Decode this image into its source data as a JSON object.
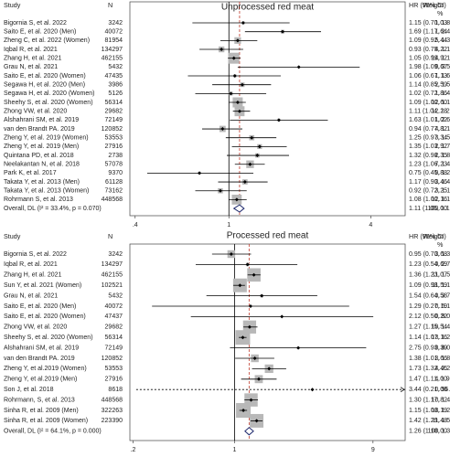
{
  "chart_data": [
    {
      "type": "forest",
      "title": "Unprocessed red meat",
      "log_scale": true,
      "headers": {
        "study": "Study",
        "n": "N",
        "hr": "HR (95% CI)",
        "weight": [
          "Weight",
          "%"
        ]
      },
      "xlim": [
        0.38,
        5.6
      ],
      "xticks": [
        {
          "value": 0.4,
          "label": ".4"
        },
        1,
        4
      ],
      "null_line": 1,
      "box_color": "#b8b8b8",
      "diamond_color": "#1f2a6e",
      "overall_line_color": "#c0392b",
      "rows": [
        {
          "study": "Bigornia S, et al. 2022",
          "n": 3242,
          "hr": 1.15,
          "ci": [
            0.7,
            1.81
          ],
          "hr_label": "1.15 (0.70, 1.81)",
          "weight": 1.03,
          "weight_label": "1.03"
        },
        {
          "study": "Saito E, et al. 2020 (Men)",
          "n": 40072,
          "hr": 1.69,
          "ci": [
            1.17,
            2.46
          ],
          "hr_label": "1.69 (1.17, 2.46)",
          "weight": 1.64,
          "weight_label": "1.64"
        },
        {
          "study": "Zheng C, et al. 2022 (Women)",
          "n": 81954,
          "hr": 1.09,
          "ci": [
            0.92,
            1.32
          ],
          "hr_label": "1.09 (0.92, 1.32)",
          "weight": 5.44,
          "weight_label": "5.44"
        },
        {
          "study": "Iqbal R, et al. 2021",
          "n": 134297,
          "hr": 0.93,
          "ci": [
            0.75,
            1.15
          ],
          "hr_label": "0.93 (0.75, 1.15)",
          "weight": 4.22,
          "weight_label": "4.22"
        },
        {
          "study": "Zhang H, et al. 2021",
          "n": 462155,
          "hr": 1.05,
          "ci": [
            0.99,
            1.12
          ],
          "hr_label": "1.05 (0.99, 1.12)",
          "weight": 14.92,
          "weight_label": "14.92"
        },
        {
          "study": "Grau N, et al. 2021",
          "n": 5432,
          "hr": 1.98,
          "ci": [
            1.09,
            3.59
          ],
          "hr_label": "1.98 (1.09, 3.59)",
          "weight": 0.67,
          "weight_label": "0.67"
        },
        {
          "study": "Saito E, et al. 2020 (Women)",
          "n": 47435,
          "hr": 1.06,
          "ci": [
            0.67,
            1.66
          ],
          "hr_label": "1.06 (0.67, 1.66)",
          "weight": 1.13,
          "weight_label": "1.13"
        },
        {
          "study": "Segawa H, et al. 2020 (Men)",
          "n": 3986,
          "hr": 1.14,
          "ci": [
            0.85,
            1.51
          ],
          "hr_label": "1.14 (0.85, 1.51)",
          "weight": 2.59,
          "weight_label": "2.59"
        },
        {
          "study": "Segawa H, et al. 2020 (Women)",
          "n": 5126,
          "hr": 1.02,
          "ci": [
            0.72,
            1.44
          ],
          "hr_label": "1.02 (0.72, 1.44)",
          "weight": 1.86,
          "weight_label": "1.86"
        },
        {
          "study": "Sheehy S, et al. 2020 (Women)",
          "n": 56314,
          "hr": 1.09,
          "ci": [
            1.0,
            1.18
          ],
          "hr_label": "1.09 (1.00, 1.18)",
          "weight": 12.6,
          "weight_label": "12.60"
        },
        {
          "study": "Zhong VW, et al. 2020",
          "n": 29682,
          "hr": 1.11,
          "ci": [
            1.04,
            1.23
          ],
          "hr_label": "1.11 (1.04, 1.23)",
          "weight": 12.28,
          "weight_label": "12.28"
        },
        {
          "study": "Alshahrani SM, et al. 2019",
          "n": 72149,
          "hr": 1.63,
          "ci": [
            1.01,
            2.63
          ],
          "hr_label": "1.63 (1.01, 2.63)",
          "weight": 1.02,
          "weight_label": "1.02"
        },
        {
          "study": "van den Brandt PA. 2019",
          "n": 120852,
          "hr": 0.94,
          "ci": [
            0.77,
            1.14
          ],
          "hr_label": "0.94 (0.77, 1.14)",
          "weight": 4.82,
          "weight_label": "4.82"
        },
        {
          "study": "Zheng Y, et al. 2019 (Women)",
          "n": 53553,
          "hr": 1.25,
          "ci": [
            0.97,
            1.59
          ],
          "hr_label": "1.25 (0.97, 1.59)",
          "weight": 3.34,
          "weight_label": "3.34"
        },
        {
          "study": "Zheng Y, et al. 2019 (Men)",
          "n": 27916,
          "hr": 1.35,
          "ci": [
            1.03,
            1.76
          ],
          "hr_label": "1.35 (1.03, 1.76)",
          "weight": 2.92,
          "weight_label": "2.92"
        },
        {
          "study": "Quintana PD, et al. 2018",
          "n": 2738,
          "hr": 1.32,
          "ci": [
            0.98,
            1.8
          ],
          "hr_label": "1.32 (0.98, 1.80)",
          "weight": 2.35,
          "weight_label": "2.35"
        },
        {
          "study": "Neelakantan N, et al. 2018",
          "n": 57078,
          "hr": 1.23,
          "ci": [
            1.06,
            1.42
          ],
          "hr_label": "1.23 (1.06, 1.42)",
          "weight": 7.23,
          "weight_label": "7.23"
        },
        {
          "study": "Park K, et al. 2017",
          "n": 9370,
          "hr": 0.75,
          "ci": [
            0.45,
            1.27
          ],
          "hr_label": "0.75 (0.45, 1.27)",
          "weight": 0.88,
          "weight_label": "0.88"
        },
        {
          "study": "Takata Y, et al. 2013 (Men)",
          "n": 61128,
          "hr": 1.17,
          "ci": [
            0.9,
            1.46
          ],
          "hr_label": "1.17 (0.90, 1.46)",
          "weight": 3.46,
          "weight_label": "3.46"
        },
        {
          "study": "Takata Y, et al. 2013 (Women)",
          "n": 73162,
          "hr": 0.92,
          "ci": [
            0.72,
            1.19
          ],
          "hr_label": "0.92 (0.72, 1.19)",
          "weight": 3.25,
          "weight_label": "3.25"
        },
        {
          "study": "Rohrmann S, et al. 2013",
          "n": 448568,
          "hr": 1.08,
          "ci": [
            1.0,
            1.19
          ],
          "hr_label": "1.08 (1.00, 1.19)",
          "weight": 12.16,
          "weight_label": "12.16"
        }
      ],
      "overall": {
        "study": "Overall, DL (I² = 33.4%, p = 0.070)",
        "hr": 1.11,
        "ci": [
          1.05,
          1.16
        ],
        "hr_label": "1.11 (1.05, 1.16)",
        "weight": 100,
        "weight_label": "100.00"
      }
    },
    {
      "type": "forest",
      "title": "Processed red meat",
      "log_scale": true,
      "headers": {
        "study": "Study",
        "n": "N",
        "hr": "HR (95% CI)",
        "weight": [
          "Weight",
          "%"
        ]
      },
      "xlim": [
        0.19,
        15
      ],
      "xticks": [
        {
          "value": 0.2,
          "label": ".2"
        },
        1,
        9
      ],
      "null_line": 1,
      "box_color": "#b8b8b8",
      "diamond_color": "#1f2a6e",
      "overall_line_color": "#c0392b",
      "rows": [
        {
          "study": "Bigornia S, et al. 2022",
          "n": 3242,
          "hr": 0.95,
          "ci": [
            0.7,
            1.3
          ],
          "hr_label": "0.95 (0.70, 1.30)",
          "weight": 3.68,
          "weight_label": "3.68"
        },
        {
          "study": "Iqbal R, et al. 2021",
          "n": 134297,
          "hr": 1.23,
          "ci": [
            0.54,
            2.71
          ],
          "hr_label": "1.23 (0.54, 2.71)",
          "weight": 0.69,
          "weight_label": "0.69"
        },
        {
          "study": "Zhang H, et al. 2021",
          "n": 462155,
          "hr": 1.36,
          "ci": [
            1.23,
            1.51
          ],
          "hr_label": "1.36 (1.23, 1.51)",
          "weight": 11.07,
          "weight_label": "11.07"
        },
        {
          "study": "Sun Y, et al. 2021 (Women)",
          "n": 102521,
          "hr": 1.09,
          "ci": [
            0.98,
            1.18
          ],
          "hr_label": "1.09 (0.98, 1.18)",
          "weight": 11.59,
          "weight_label": "11.59"
        },
        {
          "study": "Grau N, et al. 2021",
          "n": 5432,
          "hr": 1.54,
          "ci": [
            0.64,
            3.72
          ],
          "hr_label": "1.54 (0.64, 3.72)",
          "weight": 0.58,
          "weight_label": "0.58"
        },
        {
          "study": "Saito E, et al. 2020 (Men)",
          "n": 40072,
          "hr": 1.29,
          "ci": [
            0.27,
            6.17
          ],
          "hr_label": "1.29 (0.27, 6.17)",
          "weight": 0.19,
          "weight_label": "0.19"
        },
        {
          "study": "Saito E, et al. 2020 (Women)",
          "n": 47437,
          "hr": 2.12,
          "ci": [
            0.5,
            9.04
          ],
          "hr_label": "2.12 (0.50, 9.04)",
          "weight": 0.22,
          "weight_label": "0.22"
        },
        {
          "study": "Zhong VW, et al. 2020",
          "n": 29682,
          "hr": 1.27,
          "ci": [
            1.15,
            1.44
          ],
          "hr_label": "1.27 (1.15, 1.44)",
          "weight": 10.54,
          "weight_label": "10.54"
        },
        {
          "study": "Sheehy S, et al. 2020 (Women)",
          "n": 56314,
          "hr": 1.14,
          "ci": [
            1.07,
            1.21
          ],
          "hr_label": "1.14 (1.07, 1.21)",
          "weight": 13.16,
          "weight_label": "13.16"
        },
        {
          "study": "Alshahrani SM, et al. 2019",
          "n": 72149,
          "hr": 2.75,
          "ci": [
            0.93,
            8.08
          ],
          "hr_label": "2.75 (0.93, 8.08)",
          "weight": 0.39,
          "weight_label": "0.39"
        },
        {
          "study": "van den Brandt PA. 2019",
          "n": 120852,
          "hr": 1.38,
          "ci": [
            1.01,
            1.88
          ],
          "hr_label": "1.38 (1.01, 1.88)",
          "weight": 3.66,
          "weight_label": "3.66"
        },
        {
          "study": "Zheng Y, et al.2019 (Women)",
          "n": 53553,
          "hr": 1.73,
          "ci": [
            1.32,
            2.27
          ],
          "hr_label": "1.73 (1.32, 2.27)",
          "weight": 4.46,
          "weight_label": "4.46"
        },
        {
          "study": "Zheng Y, et al.2019 (Men)",
          "n": 27916,
          "hr": 1.47,
          "ci": [
            1.11,
            1.95
          ],
          "hr_label": "1.47 (1.11, 1.95)",
          "weight": 4.0,
          "weight_label": "4.00"
        },
        {
          "study": "Son J, et al. 2018",
          "n": 8618,
          "hr": 3.44,
          "ci": [
            0.21,
            56.67
          ],
          "hr_label": "3.44 (0.21, 56.67)",
          "weight": 0.06,
          "weight_label": "0.06"
        },
        {
          "study": "Rohrmann, S, et al. 2013",
          "n": 448568,
          "hr": 1.3,
          "ci": [
            1.17,
            1.45
          ],
          "hr_label": "1.30 (1.17, 1.45)",
          "weight": 10.82,
          "weight_label": "10.82"
        },
        {
          "study": "Sinha R, et al. 2009 (Men)",
          "n": 322263,
          "hr": 1.15,
          "ci": [
            1.08,
            1.22
          ],
          "hr_label": "1.15 (1.08, 1.22)",
          "weight": 13.19,
          "weight_label": "13.19"
        },
        {
          "study": "Sinha R, et al. 2009 (Women)",
          "n": 223390,
          "hr": 1.42,
          "ci": [
            1.29,
            1.56
          ],
          "hr_label": "1.42 (1.29, 1.56)",
          "weight": 11.48,
          "weight_label": "11.48"
        }
      ],
      "overall": {
        "study": "Overall, DL (I² = 64.1%, p = 0.000)",
        "hr": 1.26,
        "ci": [
          1.18,
          1.35
        ],
        "hr_label": "1.26 (1.18, 1.35)",
        "weight": 100,
        "weight_label": "100.00"
      }
    }
  ]
}
